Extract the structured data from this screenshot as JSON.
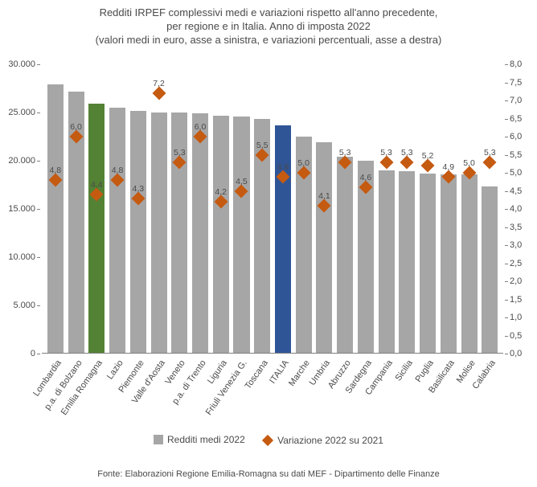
{
  "title": {
    "line1": "Redditi IRPEF complessivi medi e variazioni rispetto all'anno precedente,",
    "line2": "per regione e in Italia. Anno di imposta 2022",
    "line3": "(valori medi in euro, asse a sinistra, e variazioni percentuali, asse a destra)"
  },
  "chart": {
    "type": "bar+scatter",
    "background_color": "#ffffff",
    "default_bar_color": "#a6a6a6",
    "highlight_colors": {
      "Emilia Romagna": "#548235",
      "ITALIA": "#2f5597"
    },
    "marker_color": "#c55a11",
    "left_axis": {
      "min": 0,
      "max": 30000,
      "step": 5000,
      "ticks": [
        "0",
        "5.000",
        "10.000",
        "15.000",
        "20.000",
        "25.000",
        "30.000"
      ]
    },
    "right_axis": {
      "min": 0,
      "max": 8,
      "step": 0.5,
      "ticks": [
        "0,0",
        "0,5",
        "1,0",
        "1,5",
        "2,0",
        "2,5",
        "3,0",
        "3,5",
        "4,0",
        "4,5",
        "5,0",
        "5,5",
        "6,0",
        "6,5",
        "7,0",
        "7,5",
        "8,0"
      ]
    },
    "data": [
      {
        "region": "Lombardia",
        "income": 27900,
        "variation": 4.8,
        "variation_label": "4,8"
      },
      {
        "region": "p.a. di Bolzano",
        "income": 27200,
        "variation": 6.0,
        "variation_label": "6,0"
      },
      {
        "region": "Emilia Romagna",
        "income": 25900,
        "variation": 4.4,
        "variation_label": "4,4"
      },
      {
        "region": "Lazio",
        "income": 25500,
        "variation": 4.8,
        "variation_label": "4,8"
      },
      {
        "region": "Piemonte",
        "income": 25200,
        "variation": 4.3,
        "variation_label": "4,3"
      },
      {
        "region": "Valle d'Aosta",
        "income": 25000,
        "variation": 7.2,
        "variation_label": "7,2"
      },
      {
        "region": "Veneto",
        "income": 25000,
        "variation": 5.3,
        "variation_label": "5,3"
      },
      {
        "region": "p.a. di Trento",
        "income": 24900,
        "variation": 6.0,
        "variation_label": "6,0"
      },
      {
        "region": "Liguria",
        "income": 24700,
        "variation": 4.2,
        "variation_label": "4,2"
      },
      {
        "region": "Friuli Venezia G.",
        "income": 24600,
        "variation": 4.5,
        "variation_label": "4,5"
      },
      {
        "region": "Toscana",
        "income": 24300,
        "variation": 5.5,
        "variation_label": "5,5"
      },
      {
        "region": "ITALIA",
        "income": 23700,
        "variation": 4.9,
        "variation_label": "4,9"
      },
      {
        "region": "Marche",
        "income": 22500,
        "variation": 5.0,
        "variation_label": "5,0"
      },
      {
        "region": "Umbria",
        "income": 21900,
        "variation": 4.1,
        "variation_label": "4,1"
      },
      {
        "region": "Abruzzo",
        "income": 20400,
        "variation": 5.3,
        "variation_label": "5,3"
      },
      {
        "region": "Sardegna",
        "income": 20000,
        "variation": 4.6,
        "variation_label": "4,6"
      },
      {
        "region": "Campania",
        "income": 19000,
        "variation": 5.3,
        "variation_label": "5,3"
      },
      {
        "region": "Sicilia",
        "income": 18900,
        "variation": 5.3,
        "variation_label": "5,3"
      },
      {
        "region": "Puglia",
        "income": 18700,
        "variation": 5.2,
        "variation_label": "5,2"
      },
      {
        "region": "Basilicata",
        "income": 18600,
        "variation": 4.9,
        "variation_label": "4,9"
      },
      {
        "region": "Molise",
        "income": 18600,
        "variation": 5.0,
        "variation_label": "5,0"
      },
      {
        "region": "Calabria",
        "income": 17300,
        "variation": 5.3,
        "variation_label": "5,3"
      }
    ]
  },
  "legend": {
    "bars": "Redditi medi 2022",
    "markers": "Variazione 2022 su 2021"
  },
  "source": "Fonte: Elaborazioni Regione Emilia-Romagna su dati MEF - Dipartimento delle Finanze"
}
